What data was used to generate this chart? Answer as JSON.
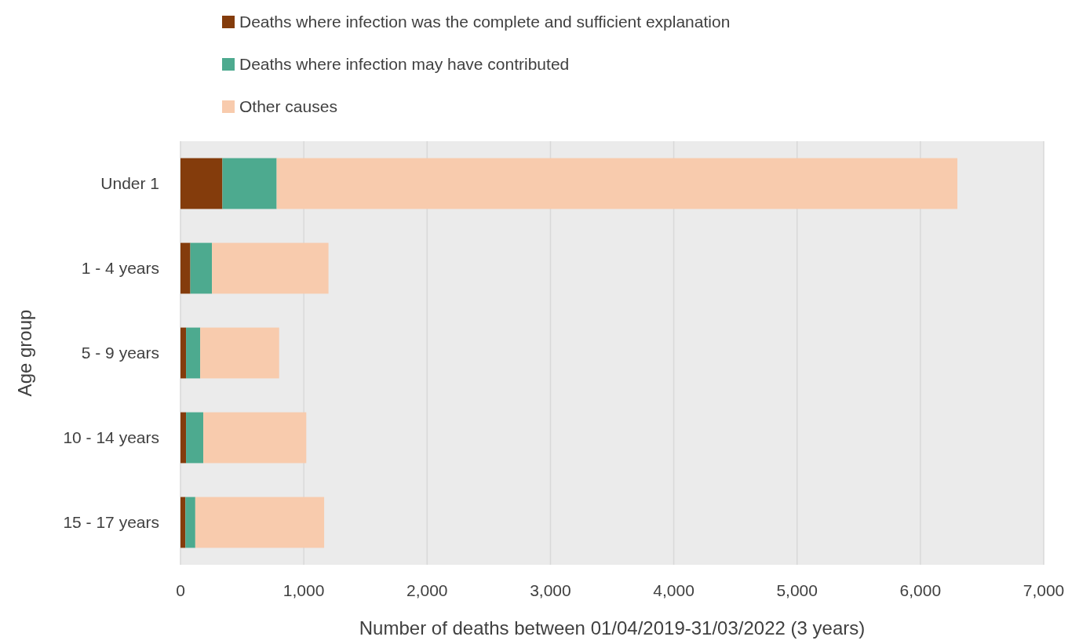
{
  "chart_data": {
    "type": "bar",
    "orientation": "horizontal",
    "stacked": true,
    "xlabel": "Number of deaths between 01/04/2019-31/03/2022 (3 years)",
    "ylabel": "Age group",
    "categories": [
      "Under 1",
      "1 - 4 years",
      "5 - 9 years",
      "10 - 14 years",
      "15 - 17 years"
    ],
    "series": [
      {
        "name": "Deaths where infection was the complete and sufficient explanation",
        "color": "#843c0c",
        "values": [
          340,
          80,
          45,
          45,
          40
        ]
      },
      {
        "name": "Deaths where infection may have contributed",
        "color": "#4daa8f",
        "values": [
          440,
          175,
          115,
          140,
          80
        ]
      },
      {
        "name": "Other causes",
        "color": "#f8cbad",
        "values": [
          5520,
          945,
          640,
          835,
          1045
        ]
      }
    ],
    "xlim": [
      0,
      7000
    ],
    "xticks": [
      {
        "value": 0,
        "label": "0"
      },
      {
        "value": 1000,
        "label": "1,000"
      },
      {
        "value": 2000,
        "label": "2,000"
      },
      {
        "value": 3000,
        "label": "3,000"
      },
      {
        "value": 4000,
        "label": "4,000"
      },
      {
        "value": 5000,
        "label": "5,000"
      },
      {
        "value": 6000,
        "label": "6,000"
      },
      {
        "value": 7000,
        "label": "7,000"
      }
    ],
    "grid": "x",
    "legend": "top"
  }
}
